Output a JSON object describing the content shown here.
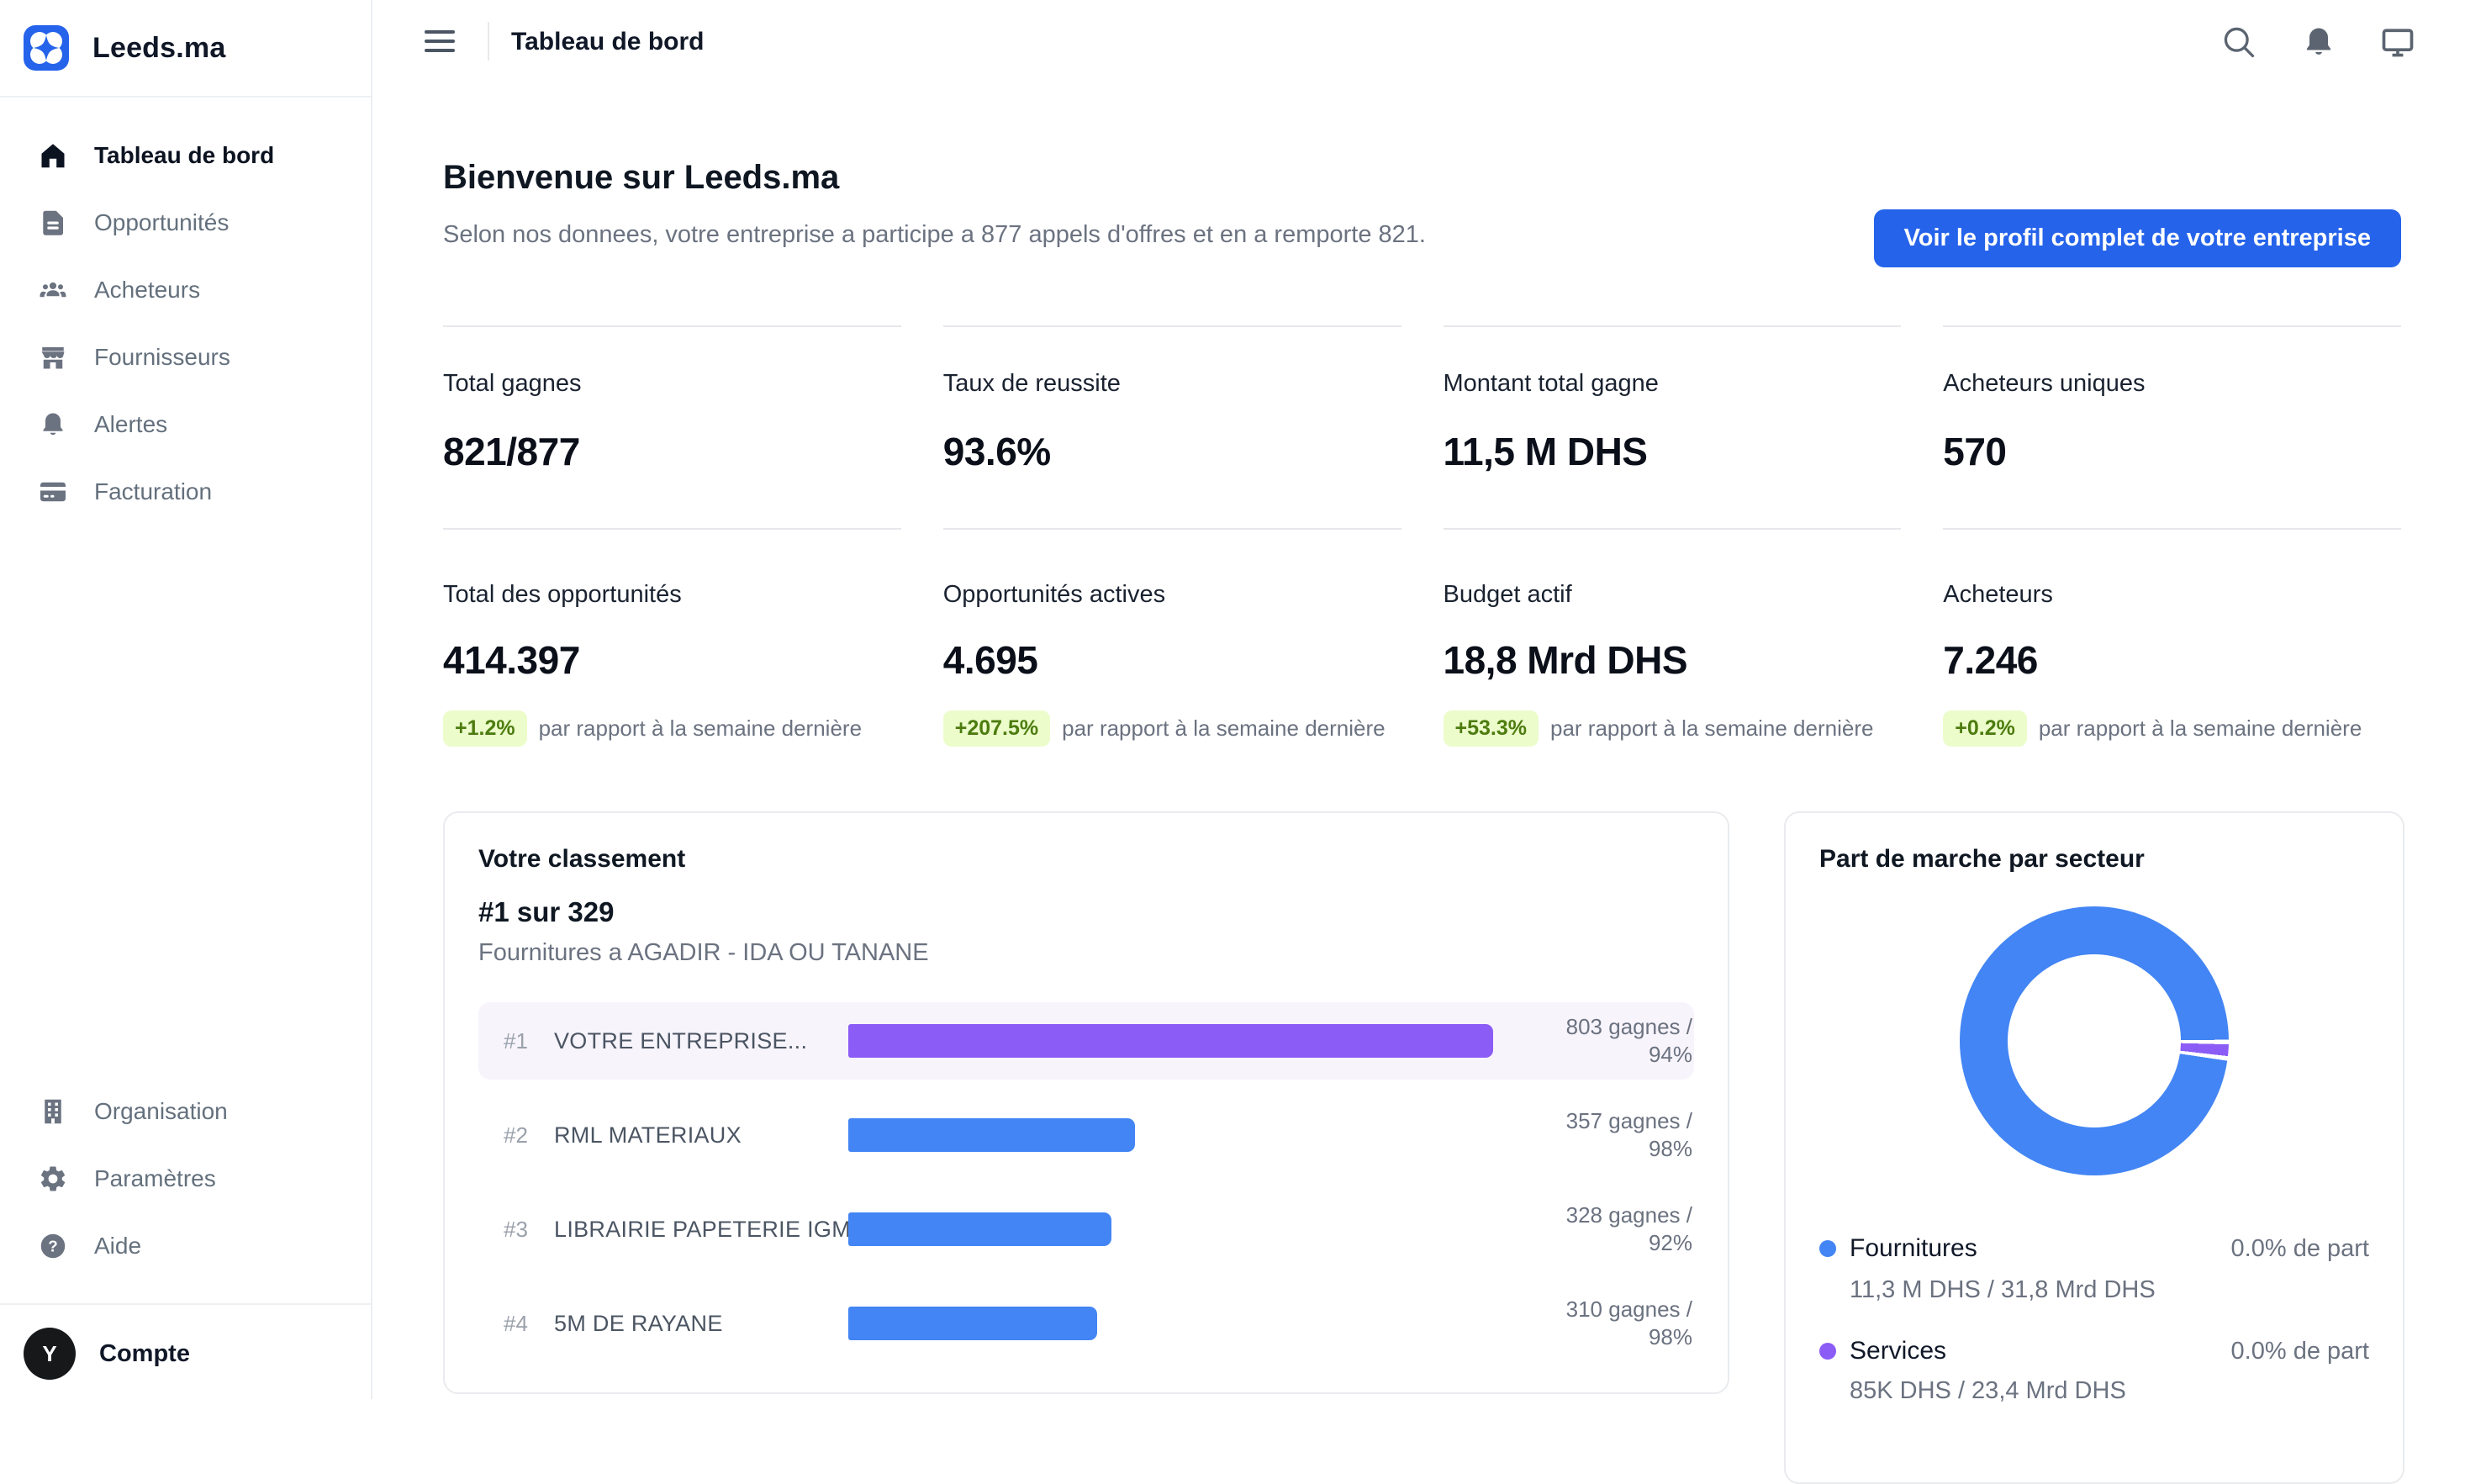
{
  "brand": {
    "name": "Leeds.ma"
  },
  "header": {
    "title": "Tableau de bord",
    "icons": [
      "menu-icon",
      "search-icon",
      "bell-icon",
      "monitor-icon"
    ]
  },
  "sidebar": {
    "items": [
      {
        "label": "Tableau de bord",
        "icon": "home-icon",
        "active": true
      },
      {
        "label": "Opportunités",
        "icon": "document-icon",
        "active": false
      },
      {
        "label": "Acheteurs",
        "icon": "users-icon",
        "active": false
      },
      {
        "label": "Fournisseurs",
        "icon": "storefront-icon",
        "active": false
      },
      {
        "label": "Alertes",
        "icon": "bell-icon",
        "active": false
      },
      {
        "label": "Facturation",
        "icon": "credit-card-icon",
        "active": false
      }
    ],
    "footer_items": [
      {
        "label": "Organisation",
        "icon": "building-icon"
      },
      {
        "label": "Paramètres",
        "icon": "gear-icon"
      },
      {
        "label": "Aide",
        "icon": "help-icon"
      }
    ],
    "account": {
      "label": "Compte",
      "avatar_initial": "Y"
    }
  },
  "welcome": {
    "title": "Bienvenue sur Leeds.ma",
    "subtitle": "Selon nos donnees, votre entreprise a participe a 877 appels d'offres et en a remporte 821.",
    "cta_label": "Voir le profil complet de votre entreprise"
  },
  "stats": {
    "row1": [
      {
        "label": "Total gagnes",
        "value": "821/877"
      },
      {
        "label": "Taux de reussite",
        "value": "93.6%"
      },
      {
        "label": "Montant total gagne",
        "value": "11,5 M DHS"
      },
      {
        "label": "Acheteurs uniques",
        "value": "570"
      }
    ],
    "row2": [
      {
        "label": "Total des opportunités",
        "value": "414.397",
        "delta": "+1.2%",
        "caption": "par rapport à la semaine dernière"
      },
      {
        "label": "Opportunités actives",
        "value": "4.695",
        "delta": "+207.5%",
        "caption": "par rapport à la semaine dernière"
      },
      {
        "label": "Budget actif",
        "value": "18,8 Mrd DHS",
        "delta": "+53.3%",
        "caption": "par rapport à la semaine dernière"
      },
      {
        "label": "Acheteurs",
        "value": "7.246",
        "delta": "+0.2%",
        "caption": "par rapport à la semaine dernière"
      }
    ]
  },
  "ranking": {
    "title": "Votre classement",
    "headline": "#1 sur 329",
    "subtitle": "Fournitures a AGADIR - IDA OU TANANE",
    "rows": [
      {
        "rank": "#1",
        "name": "VOTRE ENTREPRISE...",
        "wins": 803,
        "wins_label": "803 gagnes /",
        "rate_label": "94%",
        "highlight": true,
        "bar_color": "#8b5cf6"
      },
      {
        "rank": "#2",
        "name": "RML MATERIAUX",
        "wins": 357,
        "wins_label": "357 gagnes /",
        "rate_label": "98%",
        "highlight": false,
        "bar_color": "#4385f4"
      },
      {
        "rank": "#3",
        "name": "LIBRAIRIE PAPETERIE IGMIR",
        "wins": 328,
        "wins_label": "328 gagnes /",
        "rate_label": "92%",
        "highlight": false,
        "bar_color": "#4385f4"
      },
      {
        "rank": "#4",
        "name": "5M DE RAYANE",
        "wins": 310,
        "wins_label": "310 gagnes /",
        "rate_label": "98%",
        "highlight": false,
        "bar_color": "#4385f4"
      }
    ]
  },
  "chart_data": {
    "type": "pie",
    "subtype": "donut",
    "title": "Part de marche par secteur",
    "series": [
      {
        "name": "Fournitures",
        "color": "#4385f4",
        "visual_percent": 97.2,
        "share_label": "0.0% de part",
        "amounts_label": "11,3 M DHS / 31,8 Mrd DHS"
      },
      {
        "name": "Services",
        "color": "#8b5cf6",
        "visual_percent": 1.4,
        "share_label": "0.0% de part",
        "amounts_label": "85K DHS / 23,4 Mrd DHS"
      }
    ],
    "services_arc": {
      "start_deg": 91.5,
      "end_deg": 96.5,
      "gap_deg": 2
    },
    "legend_position": "bottom"
  },
  "colors": {
    "accent_blue": "#2563eb",
    "chart_blue": "#4385f4",
    "chart_purple": "#8b5cf6",
    "badge_bg": "#ecfccb",
    "badge_text": "#4d7c0f",
    "highlight_row": "#f7f4fb"
  }
}
